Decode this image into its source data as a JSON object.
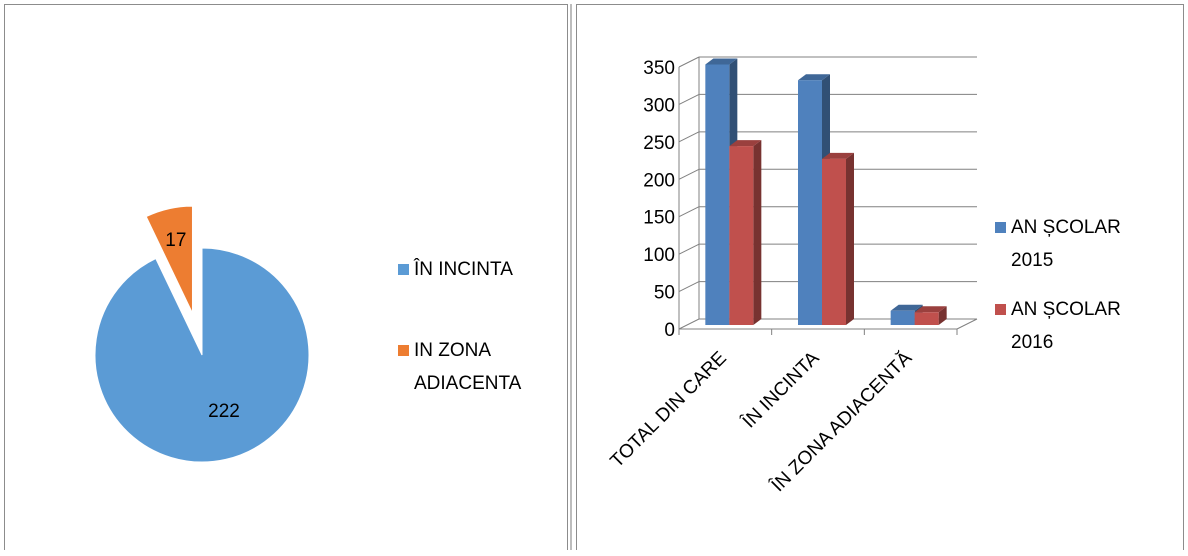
{
  "chart_data": [
    {
      "type": "pie",
      "categories": [
        "ÎN INCINTA",
        "IN ZONA ADIACENTA"
      ],
      "values": [
        222,
        17
      ],
      "data_labels": [
        "222",
        "17"
      ],
      "colors": [
        "#5b9bd5",
        "#ed7d31"
      ],
      "legend_position": "right",
      "exploded_slice": "IN ZONA ADIACENTA"
    },
    {
      "type": "bar",
      "style": "3d-clustered-column",
      "categories": [
        "TOTAL DIN CARE",
        "ÎN INCINTA",
        "ÎN ZONA ADIACENTĂ"
      ],
      "series": [
        {
          "name": "AN ȘCOLAR 2015",
          "values": [
            348,
            327,
            19
          ],
          "color": "#4f81bd"
        },
        {
          "name": "AN ȘCOLAR 2016",
          "values": [
            239,
            222,
            17
          ],
          "color": "#c0504d"
        }
      ],
      "ylim": [
        0,
        350
      ],
      "yticks": [
        "0",
        "50",
        "100",
        "150",
        "200",
        "250",
        "300",
        "350"
      ],
      "grid": true,
      "legend_position": "right"
    }
  ]
}
